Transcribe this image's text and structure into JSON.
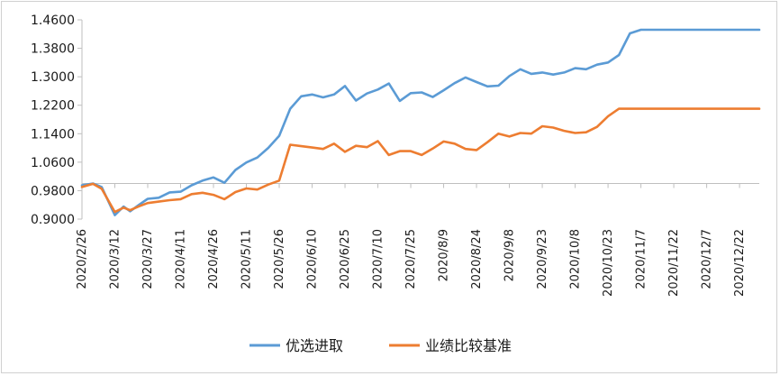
{
  "chart_data": {
    "type": "line",
    "title": "",
    "xlabel": "",
    "ylabel": "",
    "ylim": [
      0.9,
      1.46
    ],
    "yticks": [
      "0.9000",
      "0.9800",
      "1.0600",
      "1.1400",
      "1.2200",
      "1.3000",
      "1.3800",
      "1.4600"
    ],
    "xticks": [
      "2020/2/26",
      "2020/3/12",
      "2020/3/27",
      "2020/4/11",
      "2020/4/26",
      "2020/5/11",
      "2020/5/26",
      "2020/6/10",
      "2020/6/25",
      "2020/7/10",
      "2020/7/25",
      "2020/8/9",
      "2020/8/24",
      "2020/9/8",
      "2020/9/23",
      "2020/10/8",
      "2020/10/23",
      "2020/11/7",
      "2020/11/22",
      "2020/12/7",
      "2020/12/22"
    ],
    "x": [
      "2020/2/26",
      "2020/3/2",
      "2020/3/6",
      "2020/3/12",
      "2020/3/16",
      "2020/3/19",
      "2020/3/23",
      "2020/3/27",
      "2020/4/1",
      "2020/4/6",
      "2020/4/11",
      "2020/4/16",
      "2020/4/21",
      "2020/4/26",
      "2020/5/1",
      "2020/5/6",
      "2020/5/11",
      "2020/5/16",
      "2020/5/21",
      "2020/5/26",
      "2020/5/31",
      "2020/6/5",
      "2020/6/10",
      "2020/6/15",
      "2020/6/20",
      "2020/6/25",
      "2020/6/30",
      "2020/7/5",
      "2020/7/10",
      "2020/7/15",
      "2020/7/20",
      "2020/7/25",
      "2020/7/30",
      "2020/8/4",
      "2020/8/9",
      "2020/8/14",
      "2020/8/19",
      "2020/8/24",
      "2020/8/29",
      "2020/9/3",
      "2020/9/8",
      "2020/9/13",
      "2020/9/18",
      "2020/9/23",
      "2020/9/28",
      "2020/10/3",
      "2020/10/8",
      "2020/10/13",
      "2020/10/18",
      "2020/10/23",
      "2020/10/28",
      "2020/11/2",
      "2020/11/7",
      "2020/11/12",
      "2020/11/17",
      "2020/11/22",
      "2020/11/27",
      "2020/12/2",
      "2020/12/7",
      "2020/12/12",
      "2020/12/17",
      "2020/12/22",
      "2020/12/27",
      "2020/12/31"
    ],
    "series": [
      {
        "name": "优选进取",
        "color": "#5b9bd5",
        "values": [
          0.9951,
          1.0001,
          0.9901,
          0.9111,
          0.9351,
          0.9221,
          0.9401,
          0.9571,
          0.9601,
          0.9751,
          0.9771,
          0.9951,
          1.0081,
          1.0171,
          1.0021,
          1.0381,
          1.0591,
          1.0731,
          1.1001,
          1.1341,
          1.2101,
          1.2451,
          1.2501,
          1.2421,
          1.2501,
          1.2741,
          1.2331,
          1.2531,
          1.2641,
          1.2811,
          1.2321,
          1.2541,
          1.2561,
          1.2431,
          1.2621,
          1.2821,
          1.2981,
          1.2851,
          1.2731,
          1.2751,
          1.3021,
          1.3211,
          1.3081,
          1.3121,
          1.3061,
          1.3121,
          1.3241,
          1.3211,
          1.3341,
          1.3401,
          1.3611,
          1.4221,
          1.4321,
          1.4321,
          1.4321,
          1.4321,
          1.4321,
          1.4321,
          1.4321,
          1.4321,
          1.4321,
          1.4321,
          1.4321,
          1.4321
        ]
      },
      {
        "name": "业绩比较基准",
        "color": "#ed7d31",
        "values": [
          0.9901,
          0.9991,
          0.9851,
          0.9201,
          0.9321,
          0.9251,
          0.9361,
          0.9451,
          0.9491,
          0.9531,
          0.9561,
          0.9701,
          0.9741,
          0.9681,
          0.9561,
          0.9761,
          0.9861,
          0.9831,
          0.9971,
          1.0081,
          1.1091,
          1.1051,
          1.1011,
          1.0971,
          1.1121,
          1.0891,
          1.1061,
          1.1021,
          1.1191,
          1.0801,
          1.0911,
          1.0911,
          1.0801,
          1.0981,
          1.1181,
          1.1121,
          1.0971,
          1.0941,
          1.1161,
          1.1401,
          1.1321,
          1.1421,
          1.1401,
          1.1611,
          1.1571,
          1.1481,
          1.1421,
          1.1441,
          1.1591,
          1.1891,
          1.2101,
          1.2101,
          1.2101,
          1.2101,
          1.2101,
          1.2101,
          1.2101,
          1.2101,
          1.2101,
          1.2101,
          1.2101,
          1.2101,
          1.2101,
          1.2101
        ]
      }
    ],
    "legend": "bottom",
    "grid": false
  }
}
